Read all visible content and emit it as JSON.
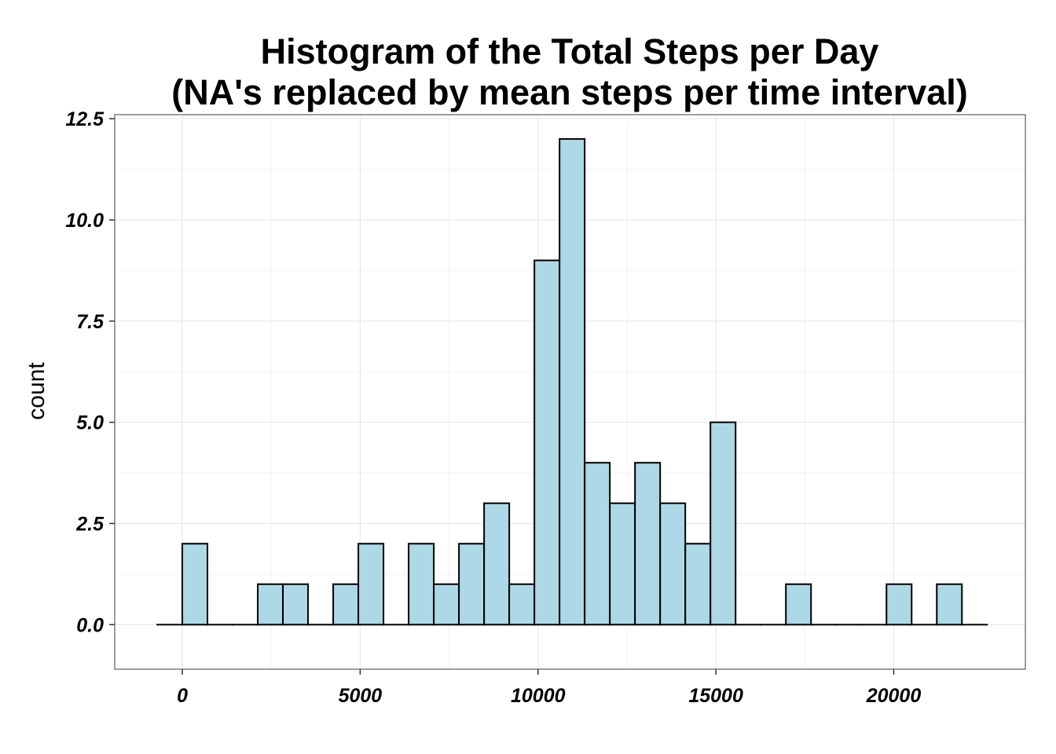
{
  "chart_data": {
    "type": "bar",
    "title_line1": "Histogram of the Total Steps per Day",
    "title_line2": "(NA's replaced by mean steps per time interval)",
    "xlabel": "",
    "ylabel": "count",
    "xlim": [
      -1900,
      23700
    ],
    "ylim": [
      -1.1,
      12.6
    ],
    "x_ticks": [
      0,
      5000,
      10000,
      15000,
      20000
    ],
    "x_tick_labels": [
      "0",
      "5000",
      "10000",
      "15000",
      "20000"
    ],
    "y_ticks": [
      0,
      2.5,
      5,
      7.5,
      10,
      12.5
    ],
    "y_tick_labels": [
      "0.0",
      "2.5",
      "5.0",
      "7.5",
      "10.0",
      "12.5"
    ],
    "grid": true,
    "bar_fill": "#add8e6",
    "bar_stroke": "#000000",
    "bin_width": 707,
    "bin_starts": [
      -707,
      0,
      707,
      1414,
      2121,
      2828,
      3535,
      4242,
      4949,
      5656,
      6363,
      7070,
      7777,
      8484,
      9191,
      9898,
      10605,
      11312,
      12019,
      12726,
      13433,
      14140,
      14847,
      15554,
      16261,
      16968,
      17675,
      18382,
      19089,
      19796,
      20503,
      21210,
      21917
    ],
    "values": [
      0,
      2,
      0,
      0,
      1,
      1,
      0,
      1,
      2,
      0,
      2,
      1,
      2,
      3,
      1,
      9,
      12,
      4,
      3,
      4,
      3,
      2,
      5,
      0,
      0,
      1,
      0,
      0,
      0,
      1,
      0,
      1,
      0
    ]
  }
}
